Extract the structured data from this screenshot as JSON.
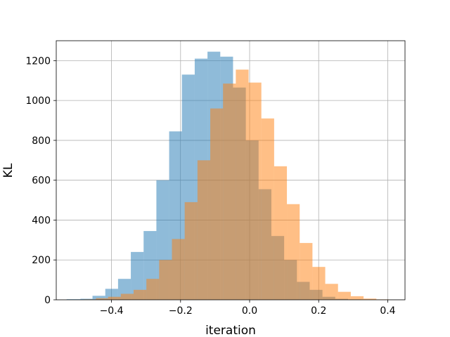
{
  "chart_data": {
    "type": "histogram",
    "title": "",
    "xlabel": "iteration",
    "ylabel": "KL",
    "xlim": [
      -0.56,
      0.45
    ],
    "ylim": [
      0,
      1300
    ],
    "xticks": [
      -0.4,
      -0.2,
      0.0,
      0.2,
      0.4
    ],
    "xtick_labels": [
      "−0.4",
      "−0.2",
      "0.0",
      "0.2",
      "0.4"
    ],
    "yticks": [
      0,
      200,
      400,
      600,
      800,
      1000,
      1200
    ],
    "ytick_labels": [
      "0",
      "200",
      "400",
      "600",
      "800",
      "1000",
      "1200"
    ],
    "grid": true,
    "series": [
      {
        "color": "#1f77b4",
        "alpha": 0.5,
        "bins": [
          [
            -0.53,
            -0.49,
            3
          ],
          [
            -0.49,
            -0.455,
            5
          ],
          [
            -0.455,
            -0.418,
            20
          ],
          [
            -0.418,
            -0.381,
            55
          ],
          [
            -0.381,
            -0.344,
            105
          ],
          [
            -0.344,
            -0.307,
            240
          ],
          [
            -0.307,
            -0.27,
            345
          ],
          [
            -0.27,
            -0.233,
            600
          ],
          [
            -0.233,
            -0.196,
            845
          ],
          [
            -0.196,
            -0.159,
            1130
          ],
          [
            -0.159,
            -0.122,
            1210
          ],
          [
            -0.122,
            -0.085,
            1245
          ],
          [
            -0.085,
            -0.048,
            1220
          ],
          [
            -0.048,
            -0.011,
            1065
          ],
          [
            -0.011,
            0.026,
            800
          ],
          [
            0.026,
            0.063,
            555
          ],
          [
            0.063,
            0.1,
            320
          ],
          [
            0.1,
            0.137,
            200
          ],
          [
            0.137,
            0.174,
            90
          ],
          [
            0.174,
            0.211,
            50
          ],
          [
            0.211,
            0.248,
            15
          ],
          [
            0.248,
            0.285,
            5
          ],
          [
            0.285,
            0.322,
            2
          ]
        ]
      },
      {
        "color": "#ff7f0e",
        "alpha": 0.5,
        "bins": [
          [
            -0.48,
            -0.445,
            2
          ],
          [
            -0.445,
            -0.41,
            8
          ],
          [
            -0.41,
            -0.373,
            15
          ],
          [
            -0.373,
            -0.336,
            30
          ],
          [
            -0.336,
            -0.299,
            50
          ],
          [
            -0.299,
            -0.262,
            105
          ],
          [
            -0.262,
            -0.225,
            200
          ],
          [
            -0.225,
            -0.188,
            305
          ],
          [
            -0.188,
            -0.151,
            490
          ],
          [
            -0.151,
            -0.114,
            700
          ],
          [
            -0.114,
            -0.077,
            960
          ],
          [
            -0.077,
            -0.04,
            1085
          ],
          [
            -0.04,
            -0.003,
            1155
          ],
          [
            -0.003,
            0.034,
            1090
          ],
          [
            0.034,
            0.071,
            910
          ],
          [
            0.071,
            0.108,
            670
          ],
          [
            0.108,
            0.145,
            480
          ],
          [
            0.145,
            0.182,
            285
          ],
          [
            0.182,
            0.219,
            165
          ],
          [
            0.219,
            0.256,
            80
          ],
          [
            0.256,
            0.293,
            40
          ],
          [
            0.293,
            0.33,
            18
          ],
          [
            0.33,
            0.367,
            6
          ],
          [
            0.367,
            0.404,
            2
          ]
        ]
      }
    ]
  }
}
